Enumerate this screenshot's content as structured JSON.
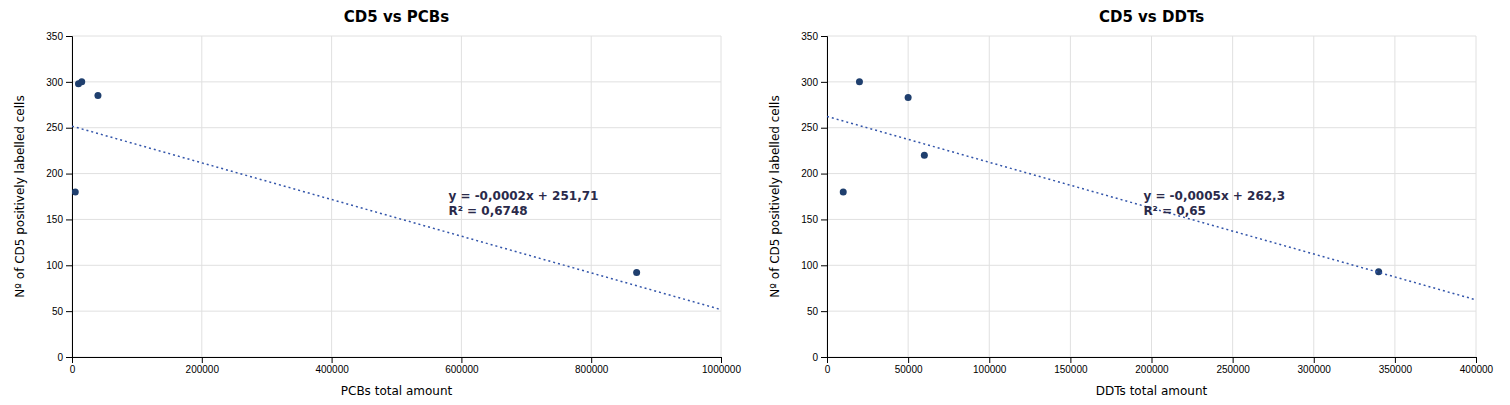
{
  "chart_data": [
    {
      "type": "scatter",
      "title": "CD5 vs PCBs",
      "x_label": "PCBs total amount",
      "y_label": "Nº of CD5 positively labelled cells",
      "series": [
        {
          "type": "scatter",
          "color": "#1f3f6e",
          "x": [
            5000,
            10000,
            15000,
            40000,
            870000
          ],
          "values": [
            180,
            298,
            300,
            285,
            92
          ]
        },
        {
          "type": "line",
          "color": "#3355aa",
          "line_style": "dotted",
          "x": [
            0,
            1000000
          ],
          "values": [
            251.71,
            51.71
          ]
        }
      ],
      "annotations": [
        {
          "text": "y = -0,0002x + 251,71",
          "x": 580000,
          "y": 168
        },
        {
          "text": "R² = 0,6748",
          "x": 580000,
          "y": 168
        }
      ],
      "xlim": [
        0,
        1000000
      ],
      "ylim": [
        0,
        350
      ],
      "xticks": [
        0,
        200000,
        400000,
        600000,
        800000,
        1000000
      ],
      "yticks": [
        0,
        50,
        100,
        150,
        200,
        250,
        300,
        350
      ],
      "grid": true
    },
    {
      "type": "scatter",
      "title": "CD5 vs DDTs",
      "x_label": "DDTs total amount",
      "y_label": "Nº of CD5 positively labelled cells",
      "series": [
        {
          "type": "scatter",
          "color": "#1f3f6e",
          "x": [
            10000,
            20000,
            50000,
            60000,
            340000
          ],
          "values": [
            180,
            300,
            283,
            220,
            93
          ]
        },
        {
          "type": "line",
          "color": "#3355aa",
          "line_style": "dotted",
          "x": [
            0,
            400000
          ],
          "values": [
            262.3,
            62.3
          ]
        }
      ],
      "annotations": [
        {
          "text": "y = -0,0005x + 262,3",
          "x": 195000,
          "y": 168
        },
        {
          "text": "R² = 0,65",
          "x": 195000,
          "y": 168
        }
      ],
      "xlim": [
        0,
        400000
      ],
      "ylim": [
        0,
        350
      ],
      "xticks": [
        0,
        50000,
        100000,
        150000,
        200000,
        250000,
        300000,
        350000,
        400000
      ],
      "yticks": [
        0,
        50,
        100,
        150,
        200,
        250,
        300,
        350
      ],
      "grid": true
    }
  ]
}
